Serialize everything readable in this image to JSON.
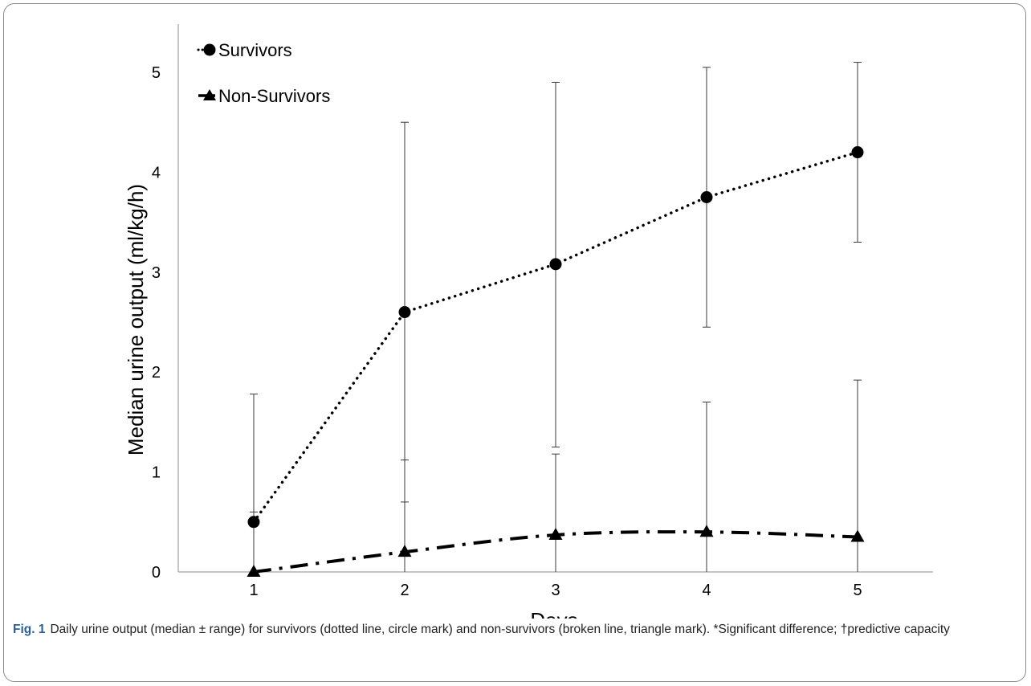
{
  "chart_data": {
    "type": "line",
    "xlabel": "Days",
    "ylabel": "Median urine output (ml/kg/h)",
    "x": [
      1,
      2,
      3,
      4,
      5
    ],
    "ylim": [
      0,
      5
    ],
    "yticks": [
      0,
      1,
      2,
      3,
      4,
      5
    ],
    "grid": false,
    "legend_position": "top-left",
    "series": [
      {
        "name": "Survivors",
        "marker": "circle",
        "line_style": "dotted",
        "color": "#000000",
        "values": [
          0.5,
          2.6,
          3.08,
          3.75,
          4.2
        ],
        "range_low": [
          0.0,
          0.7,
          1.25,
          2.45,
          3.3
        ],
        "range_high": [
          1.78,
          4.5,
          4.9,
          5.05,
          5.1
        ]
      },
      {
        "name": "Non-Survivors",
        "marker": "triangle",
        "line_style": "dash-dot",
        "color": "#000000",
        "values": [
          0.0,
          0.2,
          0.37,
          0.4,
          0.35
        ],
        "range_low": [
          0.0,
          0.0,
          0.0,
          0.0,
          0.0
        ],
        "range_high": [
          0.6,
          1.12,
          1.18,
          1.7,
          1.92
        ]
      }
    ]
  },
  "caption": {
    "label": "Fig. 1",
    "text": "Daily urine output (median ± range) for survivors (dotted line, circle mark) and non-survivors (broken line, triangle mark). *Significant difference; †predictive capacity"
  }
}
